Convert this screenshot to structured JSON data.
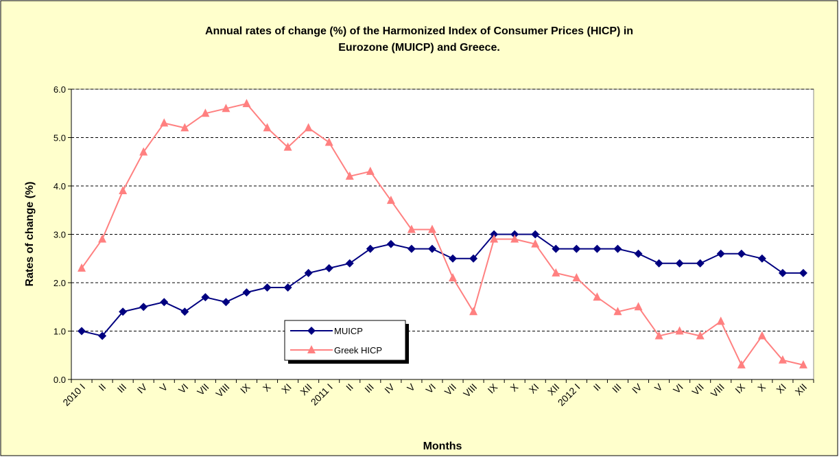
{
  "chart_data": {
    "type": "line",
    "title": "Annual rates of change (%) of the Harmonized Index of Consumer Prices (HICP) in Eurozone (MUICP) and Greece.",
    "y_label": "Rates of change (%)",
    "x_label": "Months",
    "categories": [
      "2010 I",
      "II",
      "III",
      "IV",
      "V",
      "VI",
      "VII",
      "VIII",
      "IX",
      "X",
      "XI",
      "XII",
      "2011 I",
      "II",
      "III",
      "IV",
      "V",
      "VI",
      "VII",
      "VIII",
      "IX",
      "X",
      "XI",
      "XII",
      "2012 I",
      "II",
      "III",
      "IV",
      "V",
      "VI",
      "VII",
      "VIII",
      "IX",
      "X",
      "XI",
      "XII"
    ],
    "series": [
      {
        "name": "MUICP",
        "color": "#000080",
        "marker": "diamond",
        "values": [
          1.0,
          0.9,
          1.4,
          1.5,
          1.6,
          1.4,
          1.7,
          1.6,
          1.8,
          1.9,
          1.9,
          2.2,
          2.3,
          2.4,
          2.7,
          2.8,
          2.7,
          2.7,
          2.5,
          2.5,
          3.0,
          3.0,
          3.0,
          2.7,
          2.7,
          2.7,
          2.7,
          2.6,
          2.4,
          2.4,
          2.4,
          2.6,
          2.6,
          2.5,
          2.2,
          2.2
        ]
      },
      {
        "name": "Greek HICP",
        "color": "#FF8080",
        "marker": "triangle",
        "values": [
          2.3,
          2.9,
          3.9,
          4.7,
          5.3,
          5.2,
          5.5,
          5.6,
          5.7,
          5.2,
          4.8,
          5.2,
          4.9,
          4.2,
          4.3,
          3.7,
          3.1,
          3.1,
          2.1,
          1.4,
          2.9,
          2.9,
          2.8,
          2.2,
          2.1,
          1.7,
          1.4,
          1.5,
          0.9,
          1.0,
          0.9,
          1.2,
          0.3,
          0.9,
          0.4,
          0.3
        ]
      }
    ],
    "ylim": [
      0,
      6
    ],
    "yticks": [
      {
        "value": 0,
        "label": "0.0"
      },
      {
        "value": 1,
        "label": "1.0"
      },
      {
        "value": 2,
        "label": "2.0"
      },
      {
        "value": 3,
        "label": "3.0"
      },
      {
        "value": 4,
        "label": "4.0"
      },
      {
        "value": 5,
        "label": "5.0"
      },
      {
        "value": 6,
        "label": "6.0"
      }
    ],
    "grid": true
  }
}
